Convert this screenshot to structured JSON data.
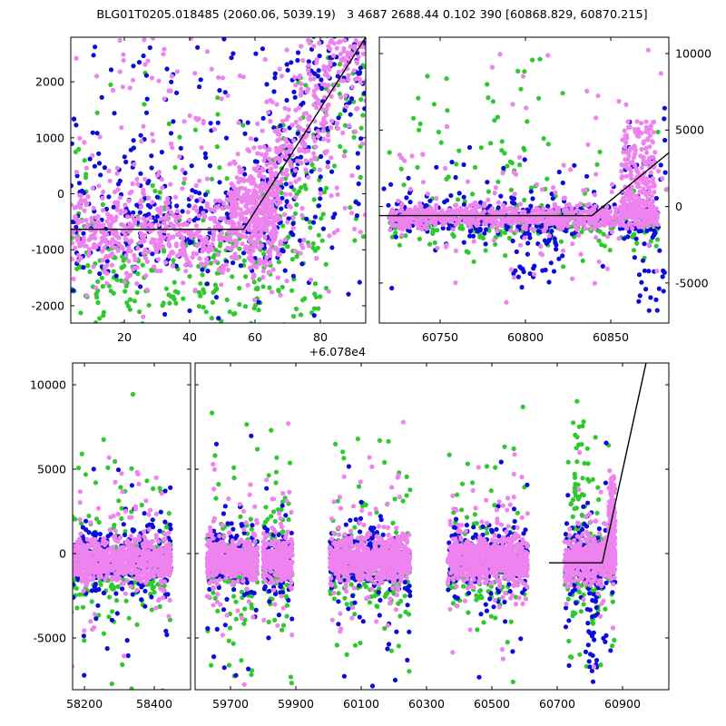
{
  "title": "BLG01T0205.018485 (2060.06, 5039.19)   3 4687 2688.44 0.102 390 [60868.829, 60870.215]",
  "chart_data": {
    "type": "scatter",
    "description": "Three-band light curve (blue, green, violet points) with piecewise-linear model line; top-left panel x-axis uses offset +6.078e4",
    "seed": 20240613,
    "point_radius": 2.6,
    "tick_length": 4,
    "line_width": 1.4,
    "colors": {
      "v": "#ee82ee",
      "b": "#0b0bdc",
      "g": "#2fc92f"
    },
    "line_color": "#000000",
    "draw_order": [
      "g",
      "b",
      "v"
    ],
    "panels": [
      {
        "id": "tl",
        "box": {
          "l": 78,
          "r": 403,
          "t": 41,
          "b": 356
        },
        "xr": [
          60783.6,
          60873.9
        ],
        "yr": [
          -2309,
          2797
        ],
        "xticks": [
          {
            "v": 60800,
            "t": "20"
          },
          {
            "v": 60820,
            "t": "40"
          },
          {
            "v": 60840,
            "t": "60"
          },
          {
            "v": 60860,
            "t": "80"
          }
        ],
        "yticks": [
          {
            "v": -2000,
            "t": "-2000"
          },
          {
            "v": -1000,
            "t": "-1000"
          },
          {
            "v": 0,
            "t": "0"
          },
          {
            "v": 1000,
            "t": "1000"
          },
          {
            "v": 2000,
            "t": "2000"
          }
        ],
        "yside": "left",
        "ylabels": true,
        "xlabels": true,
        "offset_label": "+6.078e4"
      },
      {
        "id": "tr",
        "box": {
          "l": 418,
          "r": 737,
          "t": 41,
          "b": 356
        },
        "xr": [
          60714.4,
          60884.0
        ],
        "yr": [
          -7619,
          11071
        ],
        "xticks": [
          {
            "v": 60750,
            "t": "60750"
          },
          {
            "v": 60800,
            "t": "60800"
          },
          {
            "v": 60850,
            "t": "60850"
          }
        ],
        "yticks": [
          {
            "v": -5000,
            "t": "-5000"
          },
          {
            "v": 0,
            "t": "0"
          },
          {
            "v": 5000,
            "t": "5000"
          },
          {
            "v": 10000,
            "t": "10000"
          }
        ],
        "yside": "right",
        "ylabels": true,
        "xlabels": true
      },
      {
        "id": "b1",
        "box": {
          "l": 80,
          "r": 210,
          "t": 400,
          "b": 760
        },
        "xr": [
          58166,
          58504
        ],
        "yr": [
          -8065,
          11290
        ],
        "xticks": [
          {
            "v": 58200,
            "t": "58200"
          },
          {
            "v": 58400,
            "t": "58400"
          }
        ],
        "yticks": [
          {
            "v": -5000,
            "t": "-5000"
          },
          {
            "v": 0,
            "t": "0"
          },
          {
            "v": 5000,
            "t": "5000"
          },
          {
            "v": 10000,
            "t": "10000"
          }
        ],
        "yside": "left",
        "ylabels": true,
        "xlabels": true
      },
      {
        "id": "b2",
        "box": {
          "l": 215,
          "r": 737,
          "t": 400,
          "b": 760
        },
        "xr": [
          59591.7,
          61041.7
        ],
        "yr": [
          -8065,
          11290
        ],
        "xticks": [
          {
            "v": 59700,
            "t": "59700"
          },
          {
            "v": 59900,
            "t": "59900"
          },
          {
            "v": 60100,
            "t": "60100"
          },
          {
            "v": 60300,
            "t": "60300"
          },
          {
            "v": 60500,
            "t": "60500"
          },
          {
            "v": 60700,
            "t": "60700"
          },
          {
            "v": 60900,
            "t": "60900"
          }
        ],
        "yticks": [
          {
            "v": -5000,
            "t": ""
          },
          {
            "v": 0,
            "t": ""
          },
          {
            "v": 5000,
            "t": ""
          },
          {
            "v": 10000,
            "t": ""
          }
        ],
        "yside": "left",
        "ylabels": false,
        "xlabels": true
      }
    ],
    "lines": [
      {
        "p": "tl",
        "pts": [
          [
            60783.6,
            -634
          ],
          [
            60836.5,
            -634
          ],
          [
            60873.9,
            2797
          ]
        ]
      },
      {
        "p": "tr",
        "pts": [
          [
            60714.4,
            -595
          ],
          [
            60839.0,
            -595
          ],
          [
            60884.0,
            3510
          ]
        ]
      },
      {
        "p": "b2",
        "pts": [
          [
            60675.0,
            -550
          ],
          [
            60838.0,
            -550
          ],
          [
            60972.0,
            11290
          ]
        ]
      }
    ],
    "seasons": [
      {
        "p": "b1",
        "x": [
          58163,
          58448
        ],
        "w": 1.0
      },
      {
        "p": "b2",
        "x": [
          59628,
          59783
        ],
        "w": 0.62
      },
      {
        "p": "b2",
        "x": [
          59800,
          59890
        ],
        "w": 0.42
      },
      {
        "p": "b2",
        "x": [
          60004,
          60250
        ],
        "w": 1.0
      },
      {
        "p": "b2",
        "x": [
          60365,
          60610
        ],
        "w": 1.0
      },
      {
        "p": "b2",
        "x": [
          60722,
          60878
        ],
        "w": 0.72
      }
    ],
    "season_series": [
      {
        "c": "g",
        "n": 130,
        "d": [
          "n",
          -900,
          1100
        ]
      },
      {
        "c": "g",
        "n": 72,
        "d": [
          "n",
          300,
          3800
        ]
      },
      {
        "c": "b",
        "n": 225,
        "d": [
          "n",
          -300,
          950
        ]
      },
      {
        "c": "b",
        "n": 38,
        "d": [
          "n",
          -900,
          2900
        ]
      },
      {
        "c": "v",
        "n": 700,
        "d": [
          "n",
          -350,
          600
        ]
      },
      {
        "c": "v",
        "n": 95,
        "d": [
          "n",
          0,
          2400
        ]
      }
    ],
    "clusters": [
      {
        "p": "b2",
        "c": "v",
        "n": 220,
        "x": [
          60858,
          60877
        ],
        "d": [
          "pw",
          -700,
          4700,
          1.7
        ]
      },
      {
        "p": "b2",
        "c": "b",
        "n": 48,
        "x": [
          60795,
          60825
        ],
        "d": [
          "pw",
          -1200,
          -7600,
          2.2
        ]
      },
      {
        "p": "b2",
        "c": "b",
        "n": 55,
        "x": [
          60860,
          60876
        ],
        "d": [
          "pw",
          -500,
          2600,
          1.5
        ]
      },
      {
        "p": "b2",
        "c": "g",
        "n": 45,
        "x": [
          60740,
          60800
        ],
        "d": [
          "n",
          4000,
          2600
        ]
      },
      {
        "p": "tl",
        "c": "g",
        "n": 260,
        "x": [
          60783.6,
          60862
        ],
        "d": [
          "n",
          -1500,
          650
        ]
      },
      {
        "p": "tl",
        "c": "g",
        "n": 85,
        "x": [
          60840,
          60873.9
        ],
        "d": [
          "ln",
          60837,
          -1000,
          85,
          800
        ]
      },
      {
        "p": "tl",
        "c": "g",
        "n": 80,
        "x": [
          60783.6,
          60873.9
        ],
        "d": [
          "n",
          -200,
          1500
        ]
      },
      {
        "p": "tl",
        "c": "b",
        "n": 230,
        "x": [
          60783.6,
          60852
        ],
        "d": [
          "n",
          -550,
          520
        ]
      },
      {
        "p": "tl",
        "c": "b",
        "n": 140,
        "x": [
          60842,
          60873.9
        ],
        "d": [
          "ln",
          60837,
          -300,
          90,
          800
        ]
      },
      {
        "p": "tl",
        "c": "b",
        "n": 140,
        "x": [
          60783.6,
          60873.9
        ],
        "d": [
          "n",
          300,
          1300
        ]
      },
      {
        "p": "tl",
        "c": "b",
        "n": 15,
        "x": [
          60790,
          60850
        ],
        "d": [
          "u",
          1800,
          2750
        ]
      },
      {
        "p": "tl",
        "c": "v",
        "n": 550,
        "x": [
          60783.6,
          60848
        ],
        "d": [
          "n",
          -700,
          380
        ]
      },
      {
        "p": "tl",
        "c": "v",
        "n": 220,
        "x": [
          60832,
          60847
        ],
        "d": [
          "n",
          -150,
          380
        ]
      },
      {
        "p": "tl",
        "c": "v",
        "n": 330,
        "x": [
          60838,
          60873.9
        ],
        "d": [
          "ln",
          60837,
          -500,
          95,
          650
        ]
      },
      {
        "p": "tl",
        "c": "v",
        "n": 160,
        "x": [
          60783.6,
          60873.9
        ],
        "d": [
          "n",
          400,
          1500
        ]
      },
      {
        "p": "tl",
        "c": "v",
        "n": 25,
        "x": [
          60785,
          60873
        ],
        "d": [
          "u",
          1800,
          2780
        ]
      },
      {
        "p": "tr",
        "c": "g",
        "n": 230,
        "x": [
          60720,
          60878
        ],
        "d": [
          "n",
          -1100,
          700
        ]
      },
      {
        "p": "tr",
        "c": "g",
        "n": 40,
        "x": [
          60735,
          60825
        ],
        "d": [
          "n",
          5000,
          2800
        ]
      },
      {
        "p": "tr",
        "c": "g",
        "n": 45,
        "x": [
          60716,
          60884
        ],
        "d": [
          "n",
          500,
          2600
        ]
      },
      {
        "p": "tr",
        "c": "b",
        "n": 260,
        "x": [
          60720,
          60878
        ],
        "d": [
          "n",
          -650,
          650
        ]
      },
      {
        "p": "tr",
        "c": "b",
        "n": 70,
        "x": [
          60716,
          60884
        ],
        "d": [
          "n",
          -400,
          2500
        ]
      },
      {
        "p": "tr",
        "c": "b",
        "n": 45,
        "x": [
          60793,
          60822
        ],
        "d": [
          "pw",
          -1300,
          -5300,
          2.0
        ]
      },
      {
        "p": "tr",
        "c": "b",
        "n": 22,
        "x": [
          60866,
          60883
        ],
        "d": [
          "u",
          -6800,
          -1500
        ]
      },
      {
        "p": "tr",
        "c": "b",
        "n": 18,
        "x": [
          60858,
          60882
        ],
        "d": [
          "n",
          3200,
          1600
        ]
      },
      {
        "p": "tr",
        "c": "v",
        "n": 750,
        "x": [
          60720,
          60878
        ],
        "d": [
          "n",
          -700,
          380
        ]
      },
      {
        "p": "tr",
        "c": "v",
        "n": 110,
        "x": [
          60716,
          60884
        ],
        "d": [
          "n",
          0,
          2300
        ]
      },
      {
        "p": "tr",
        "c": "v",
        "n": 230,
        "x": [
          60856,
          60876
        ],
        "d": [
          "pw",
          -700,
          5600,
          1.5
        ]
      },
      {
        "p": "tr",
        "c": "v",
        "n": 12,
        "x": [
          60770,
          60880
        ],
        "d": [
          "u",
          5500,
          10500
        ]
      }
    ]
  }
}
